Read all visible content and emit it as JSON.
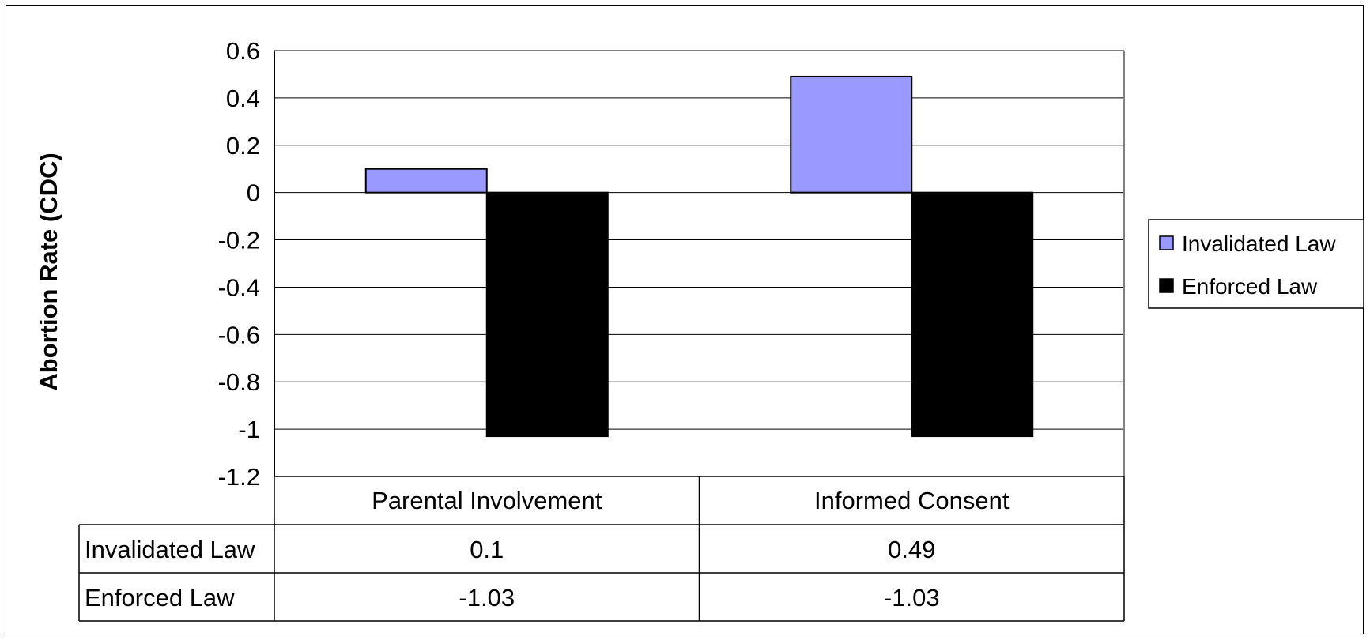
{
  "chart_data": {
    "type": "bar",
    "title": "",
    "ylabel": "Abortion Rate (CDC)",
    "xlabel": "",
    "ylim": [
      -1.2,
      0.6
    ],
    "yticks": [
      0.6,
      0.4,
      0.2,
      0,
      -0.2,
      -0.4,
      -0.6,
      -0.8,
      -1,
      -1.2
    ],
    "grid": true,
    "legend_position": "right",
    "categories": [
      "Parental Involvement",
      "Informed Consent"
    ],
    "series": [
      {
        "name": "Invalidated Law",
        "values": [
          0.1,
          0.49
        ],
        "color": "#9999ff"
      },
      {
        "name": "Enforced Law",
        "values": [
          -1.03,
          -1.03
        ],
        "color": "#000000"
      }
    ],
    "data_table": {
      "rows": [
        {
          "label": "Invalidated Law",
          "cells": [
            "0.1",
            "0.49"
          ]
        },
        {
          "label": "Enforced Law",
          "cells": [
            "-1.03",
            "-1.03"
          ]
        }
      ]
    }
  }
}
